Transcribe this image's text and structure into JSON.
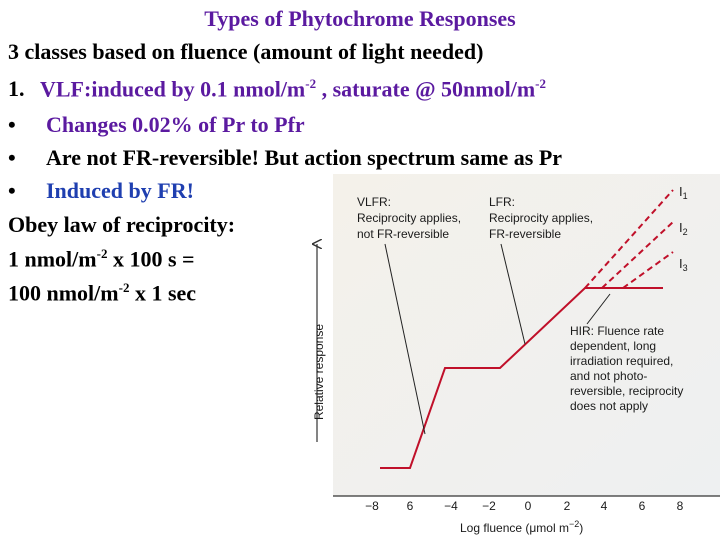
{
  "slide": {
    "title": "Types of Phytochrome Responses",
    "line1": "3 classes based on fluence (amount of light needed)",
    "line2_num": "1.",
    "line2_a": "VLF:induced by 0.1 nmol/m",
    "line2_sup1": "-2",
    "line2_b": " , saturate @  50nmol/m",
    "line2_sup2": "-2",
    "bullet_char": "•",
    "bullet1": "Changes 0.02% of Pr to Pfr",
    "bullet2": "Are not FR-reversible! But action spectrum same as Pr",
    "bullet3": "Induced by FR!",
    "reciprocity": "Obey law of reciprocity:",
    "eq1_a": "1 nmol/m",
    "eq1_sup": "-2",
    "eq1_b": " x 100 s =",
    "eq2_a": "100 nmol/m",
    "eq2_sup": "-2",
    "eq2_b": " x 1 sec"
  },
  "figure": {
    "vlfr_l1": "VLFR:",
    "vlfr_l2": "Reciprocity applies,",
    "vlfr_l3": "not FR-reversible",
    "lfr_l1": "LFR:",
    "lfr_l2": "Reciprocity applies,",
    "lfr_l3": "FR-reversible",
    "hir_l1": "HIR: Fluence rate",
    "hir_l2": "dependent, long",
    "hir_l3": "irradiation required,",
    "hir_l4": "and not photo-",
    "hir_l5": "reversible, reciprocity",
    "hir_l6": "does not apply",
    "i1": "I",
    "i1_sub": "1",
    "i2": "I",
    "i2_sub": "2",
    "i3": "I",
    "i3_sub": "3",
    "ylabel": "Relative response",
    "xlabel": "Log fluence (μmol m",
    "xlabel_sup": "−2",
    "xlabel_end": ")",
    "ticks": [
      "−8",
      "6",
      "−4",
      "−2",
      "0",
      "2",
      "4",
      "6",
      "8"
    ],
    "curve_color": "#c0102a"
  }
}
